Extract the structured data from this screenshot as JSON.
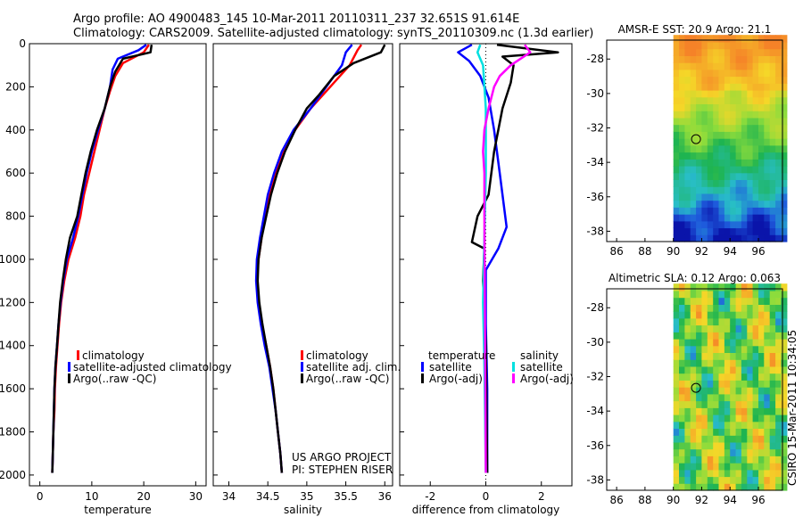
{
  "header": {
    "line1": "Argo profile: AO 4900483_145 10-Mar-2011 20110311_237 32.651S 91.614E",
    "line2": "Climatology: CARS2009. Satellite-adjusted climatology: synTS_20110309.nc (1.3d earlier)"
  },
  "colors": {
    "climatology": "#ff0000",
    "satellite": "#0000ff",
    "argo": "#000000",
    "sat_salinity": "#00e0e0",
    "argo_adj_salinity": "#ff00ff"
  },
  "project_note": {
    "line1": "US ARGO PROJECT",
    "line2": "PI: STEPHEN RISER"
  },
  "side_label": "CSIRO 15-Mar-2011 10:34:05",
  "chart_data": [
    {
      "id": "temperature",
      "type": "line",
      "xlabel": "temperature",
      "xlim": [
        -2,
        32
      ],
      "ylim": [
        0,
        2050
      ],
      "yinvert": true,
      "xticks": [
        "0",
        "10",
        "20",
        "30"
      ],
      "xtick_values": [
        0,
        10,
        20,
        30
      ],
      "yticks": [
        "0",
        "200",
        "400",
        "600",
        "800",
        "1000",
        "1200",
        "1400",
        "1600",
        "1800",
        "2000"
      ],
      "ytick_values": [
        0,
        200,
        400,
        600,
        800,
        1000,
        1200,
        1400,
        1600,
        1800,
        2000
      ],
      "legend": [
        "climatology",
        "satellite-adjusted climatology",
        "Argo(..raw -QC)"
      ],
      "series": [
        {
          "name": "climatology",
          "color": "#ff0000",
          "points": [
            [
              21,
              5
            ],
            [
              20,
              40
            ],
            [
              16,
              90
            ],
            [
              14.5,
              150
            ],
            [
              13.5,
              220
            ],
            [
              12.5,
              300
            ],
            [
              11.5,
              400
            ],
            [
              10.5,
              500
            ],
            [
              9.5,
              600
            ],
            [
              8.5,
              700
            ],
            [
              7.8,
              800
            ],
            [
              6.8,
              900
            ],
            [
              5.5,
              1000
            ],
            [
              4.7,
              1100
            ],
            [
              4.1,
              1200
            ],
            [
              3.7,
              1300
            ],
            [
              3.4,
              1400
            ],
            [
              3.1,
              1500
            ],
            [
              2.9,
              1600
            ],
            [
              2.8,
              1700
            ],
            [
              2.6,
              1800
            ],
            [
              2.5,
              1900
            ],
            [
              2.4,
              1990
            ]
          ]
        },
        {
          "name": "satellite",
          "color": "#0000ff",
          "points": [
            [
              20.5,
              5
            ],
            [
              19,
              30
            ],
            [
              15,
              70
            ],
            [
              14,
              120
            ],
            [
              13.5,
              200
            ],
            [
              12.5,
              300
            ],
            [
              11.2,
              400
            ],
            [
              10,
              500
            ],
            [
              9,
              600
            ],
            [
              8.2,
              700
            ],
            [
              7.4,
              800
            ],
            [
              6.4,
              900
            ],
            [
              5.2,
              1000
            ],
            [
              4.5,
              1100
            ],
            [
              4,
              1200
            ],
            [
              3.6,
              1300
            ],
            [
              3.3,
              1400
            ],
            [
              3,
              1500
            ],
            [
              2.8,
              1600
            ],
            [
              2.7,
              1700
            ],
            [
              2.6,
              1800
            ],
            [
              2.5,
              1900
            ],
            [
              2.4,
              1990
            ]
          ]
        },
        {
          "name": "Argo(..raw -QC)",
          "color": "#000000",
          "points": [
            [
              21.5,
              5
            ],
            [
              21.3,
              40
            ],
            [
              16,
              70
            ],
            [
              14.5,
              130
            ],
            [
              13.5,
              200
            ],
            [
              12.5,
              300
            ],
            [
              11,
              400
            ],
            [
              9.8,
              500
            ],
            [
              8.8,
              600
            ],
            [
              8,
              700
            ],
            [
              7.2,
              800
            ],
            [
              5.8,
              900
            ],
            [
              5,
              1000
            ],
            [
              4.4,
              1100
            ],
            [
              3.9,
              1200
            ],
            [
              3.6,
              1300
            ],
            [
              3.3,
              1400
            ],
            [
              3,
              1500
            ],
            [
              2.8,
              1600
            ],
            [
              2.7,
              1700
            ],
            [
              2.6,
              1800
            ],
            [
              2.5,
              1900
            ],
            [
              2.4,
              1990
            ]
          ]
        }
      ]
    },
    {
      "id": "salinity",
      "type": "line",
      "xlabel": "salinity",
      "xlim": [
        33.8,
        36.1
      ],
      "ylim": [
        0,
        2050
      ],
      "yinvert": true,
      "xticks": [
        "34",
        "34.5",
        "35",
        "35.5",
        "36"
      ],
      "xtick_values": [
        34,
        34.5,
        35,
        35.5,
        36
      ],
      "legend": [
        "climatology",
        "satellite adj. clim.",
        "Argo(..raw -QC)"
      ],
      "series": [
        {
          "name": "climatology",
          "color": "#ff0000",
          "points": [
            [
              35.7,
              5
            ],
            [
              35.65,
              30
            ],
            [
              35.55,
              100
            ],
            [
              35.3,
              200
            ],
            [
              35.05,
              300
            ],
            [
              34.85,
              400
            ],
            [
              34.7,
              500
            ],
            [
              34.6,
              600
            ],
            [
              34.52,
              700
            ],
            [
              34.46,
              800
            ],
            [
              34.42,
              900
            ],
            [
              34.38,
              1000
            ],
            [
              34.36,
              1100
            ],
            [
              34.38,
              1200
            ],
            [
              34.42,
              1300
            ],
            [
              34.48,
              1400
            ],
            [
              34.53,
              1500
            ],
            [
              34.57,
              1600
            ],
            [
              34.6,
              1700
            ],
            [
              34.63,
              1800
            ],
            [
              34.66,
              1900
            ],
            [
              34.68,
              1990
            ]
          ]
        },
        {
          "name": "satellite adj. clim.",
          "color": "#0000ff",
          "points": [
            [
              35.58,
              5
            ],
            [
              35.5,
              40
            ],
            [
              35.45,
              100
            ],
            [
              35.25,
              200
            ],
            [
              35.05,
              300
            ],
            [
              34.83,
              400
            ],
            [
              34.68,
              500
            ],
            [
              34.58,
              600
            ],
            [
              34.5,
              700
            ],
            [
              34.45,
              800
            ],
            [
              34.4,
              900
            ],
            [
              34.36,
              1000
            ],
            [
              34.35,
              1100
            ],
            [
              34.37,
              1200
            ],
            [
              34.41,
              1300
            ],
            [
              34.46,
              1400
            ],
            [
              34.52,
              1500
            ],
            [
              34.56,
              1600
            ],
            [
              34.6,
              1700
            ],
            [
              34.63,
              1800
            ],
            [
              34.66,
              1900
            ],
            [
              34.68,
              1990
            ]
          ]
        },
        {
          "name": "Argo(..raw -QC)",
          "color": "#000000",
          "points": [
            [
              36.0,
              5
            ],
            [
              35.95,
              40
            ],
            [
              35.6,
              90
            ],
            [
              35.35,
              150
            ],
            [
              35.15,
              240
            ],
            [
              35.0,
              300
            ],
            [
              34.85,
              400
            ],
            [
              34.72,
              500
            ],
            [
              34.62,
              600
            ],
            [
              34.54,
              700
            ],
            [
              34.48,
              800
            ],
            [
              34.42,
              900
            ],
            [
              34.38,
              1000
            ],
            [
              34.37,
              1100
            ],
            [
              34.39,
              1200
            ],
            [
              34.43,
              1300
            ],
            [
              34.48,
              1400
            ],
            [
              34.53,
              1500
            ],
            [
              34.57,
              1600
            ],
            [
              34.6,
              1700
            ],
            [
              34.63,
              1800
            ],
            [
              34.66,
              1900
            ],
            [
              34.68,
              1990
            ]
          ]
        }
      ]
    },
    {
      "id": "difference",
      "type": "line",
      "xlabel": "difference from climatology",
      "xlim": [
        -3.1,
        3.1
      ],
      "ylim": [
        0,
        2050
      ],
      "yinvert": true,
      "xticks": [
        "-2",
        "0",
        "2"
      ],
      "xtick_values": [
        -2,
        0,
        2
      ],
      "legend_titles": [
        "temperature",
        "salinity"
      ],
      "legend": [
        "satellite",
        "Argo(-adj)",
        "satellite",
        "Argo(-adj)"
      ],
      "series": [
        {
          "name": "temperature satellite",
          "color": "#0000ff",
          "points": [
            [
              -0.5,
              5
            ],
            [
              -1,
              40
            ],
            [
              -0.6,
              80
            ],
            [
              -0.2,
              150
            ],
            [
              0.1,
              250
            ],
            [
              0.3,
              400
            ],
            [
              0.5,
              600
            ],
            [
              0.75,
              850
            ],
            [
              0.45,
              950
            ],
            [
              0,
              1050
            ],
            [
              0,
              1300
            ],
            [
              0.05,
              1600
            ],
            [
              0.05,
              1990
            ]
          ]
        },
        {
          "name": "temperature Argo(-adj)",
          "color": "#000000",
          "points": [
            [
              0.4,
              5
            ],
            [
              2.6,
              40
            ],
            [
              0.6,
              60
            ],
            [
              1.0,
              100
            ],
            [
              0.9,
              180
            ],
            [
              0.6,
              300
            ],
            [
              0.3,
              500
            ],
            [
              0.1,
              700
            ],
            [
              -0.3,
              800
            ],
            [
              -0.5,
              920
            ],
            [
              -0.05,
              950
            ],
            [
              -0.1,
              1100
            ],
            [
              0,
              1400
            ],
            [
              0.05,
              1990
            ]
          ]
        },
        {
          "name": "salinity satellite",
          "color": "#00e0e0",
          "points": [
            [
              -0.2,
              5
            ],
            [
              -0.3,
              40
            ],
            [
              -0.1,
              100
            ],
            [
              0,
              300
            ],
            [
              0,
              600
            ],
            [
              -0.05,
              900
            ],
            [
              -0.1,
              1200
            ],
            [
              -0.05,
              1500
            ],
            [
              0,
              1990
            ]
          ]
        },
        {
          "name": "salinity Argo(-adj)",
          "color": "#ff00ff",
          "points": [
            [
              1.4,
              5
            ],
            [
              1.6,
              40
            ],
            [
              0.9,
              100
            ],
            [
              0.5,
              150
            ],
            [
              0.3,
              200
            ],
            [
              0.1,
              300
            ],
            [
              -0.05,
              400
            ],
            [
              -0.1,
              500
            ],
            [
              -0.05,
              600
            ],
            [
              -0.05,
              800
            ],
            [
              0,
              1990
            ]
          ]
        }
      ]
    },
    {
      "id": "sst_map",
      "type": "heatmap",
      "title": "AMSR-E SST: 20.9 Argo: 21.1",
      "xlim": [
        85.3,
        97.7
      ],
      "ylim": [
        -38.6,
        -26.9
      ],
      "xticks": [
        "86",
        "88",
        "90",
        "92",
        "94",
        "96"
      ],
      "xtick_values": [
        86,
        88,
        90,
        92,
        94,
        96
      ],
      "yticks": [
        "-28",
        "-30",
        "-32",
        "-34",
        "-36",
        "-38"
      ],
      "ytick_values": [
        -28,
        -30,
        -32,
        -34,
        -36,
        -38
      ],
      "data_lon_start": 90,
      "marker": [
        91.6,
        -32.65
      ]
    },
    {
      "id": "sla_map",
      "type": "heatmap",
      "title": "Altimetric SLA: 0.12 Argo: 0.063",
      "xlim": [
        85.3,
        97.7
      ],
      "ylim": [
        -38.6,
        -26.9
      ],
      "xticks": [
        "86",
        "88",
        "90",
        "92",
        "94",
        "96"
      ],
      "xtick_values": [
        86,
        88,
        90,
        92,
        94,
        96
      ],
      "yticks": [
        "-28",
        "-30",
        "-32",
        "-34",
        "-36",
        "-38"
      ],
      "ytick_values": [
        -28,
        -30,
        -32,
        -34,
        -36,
        -38
      ],
      "data_lon_start": 90,
      "marker": [
        91.6,
        -32.65
      ]
    }
  ]
}
